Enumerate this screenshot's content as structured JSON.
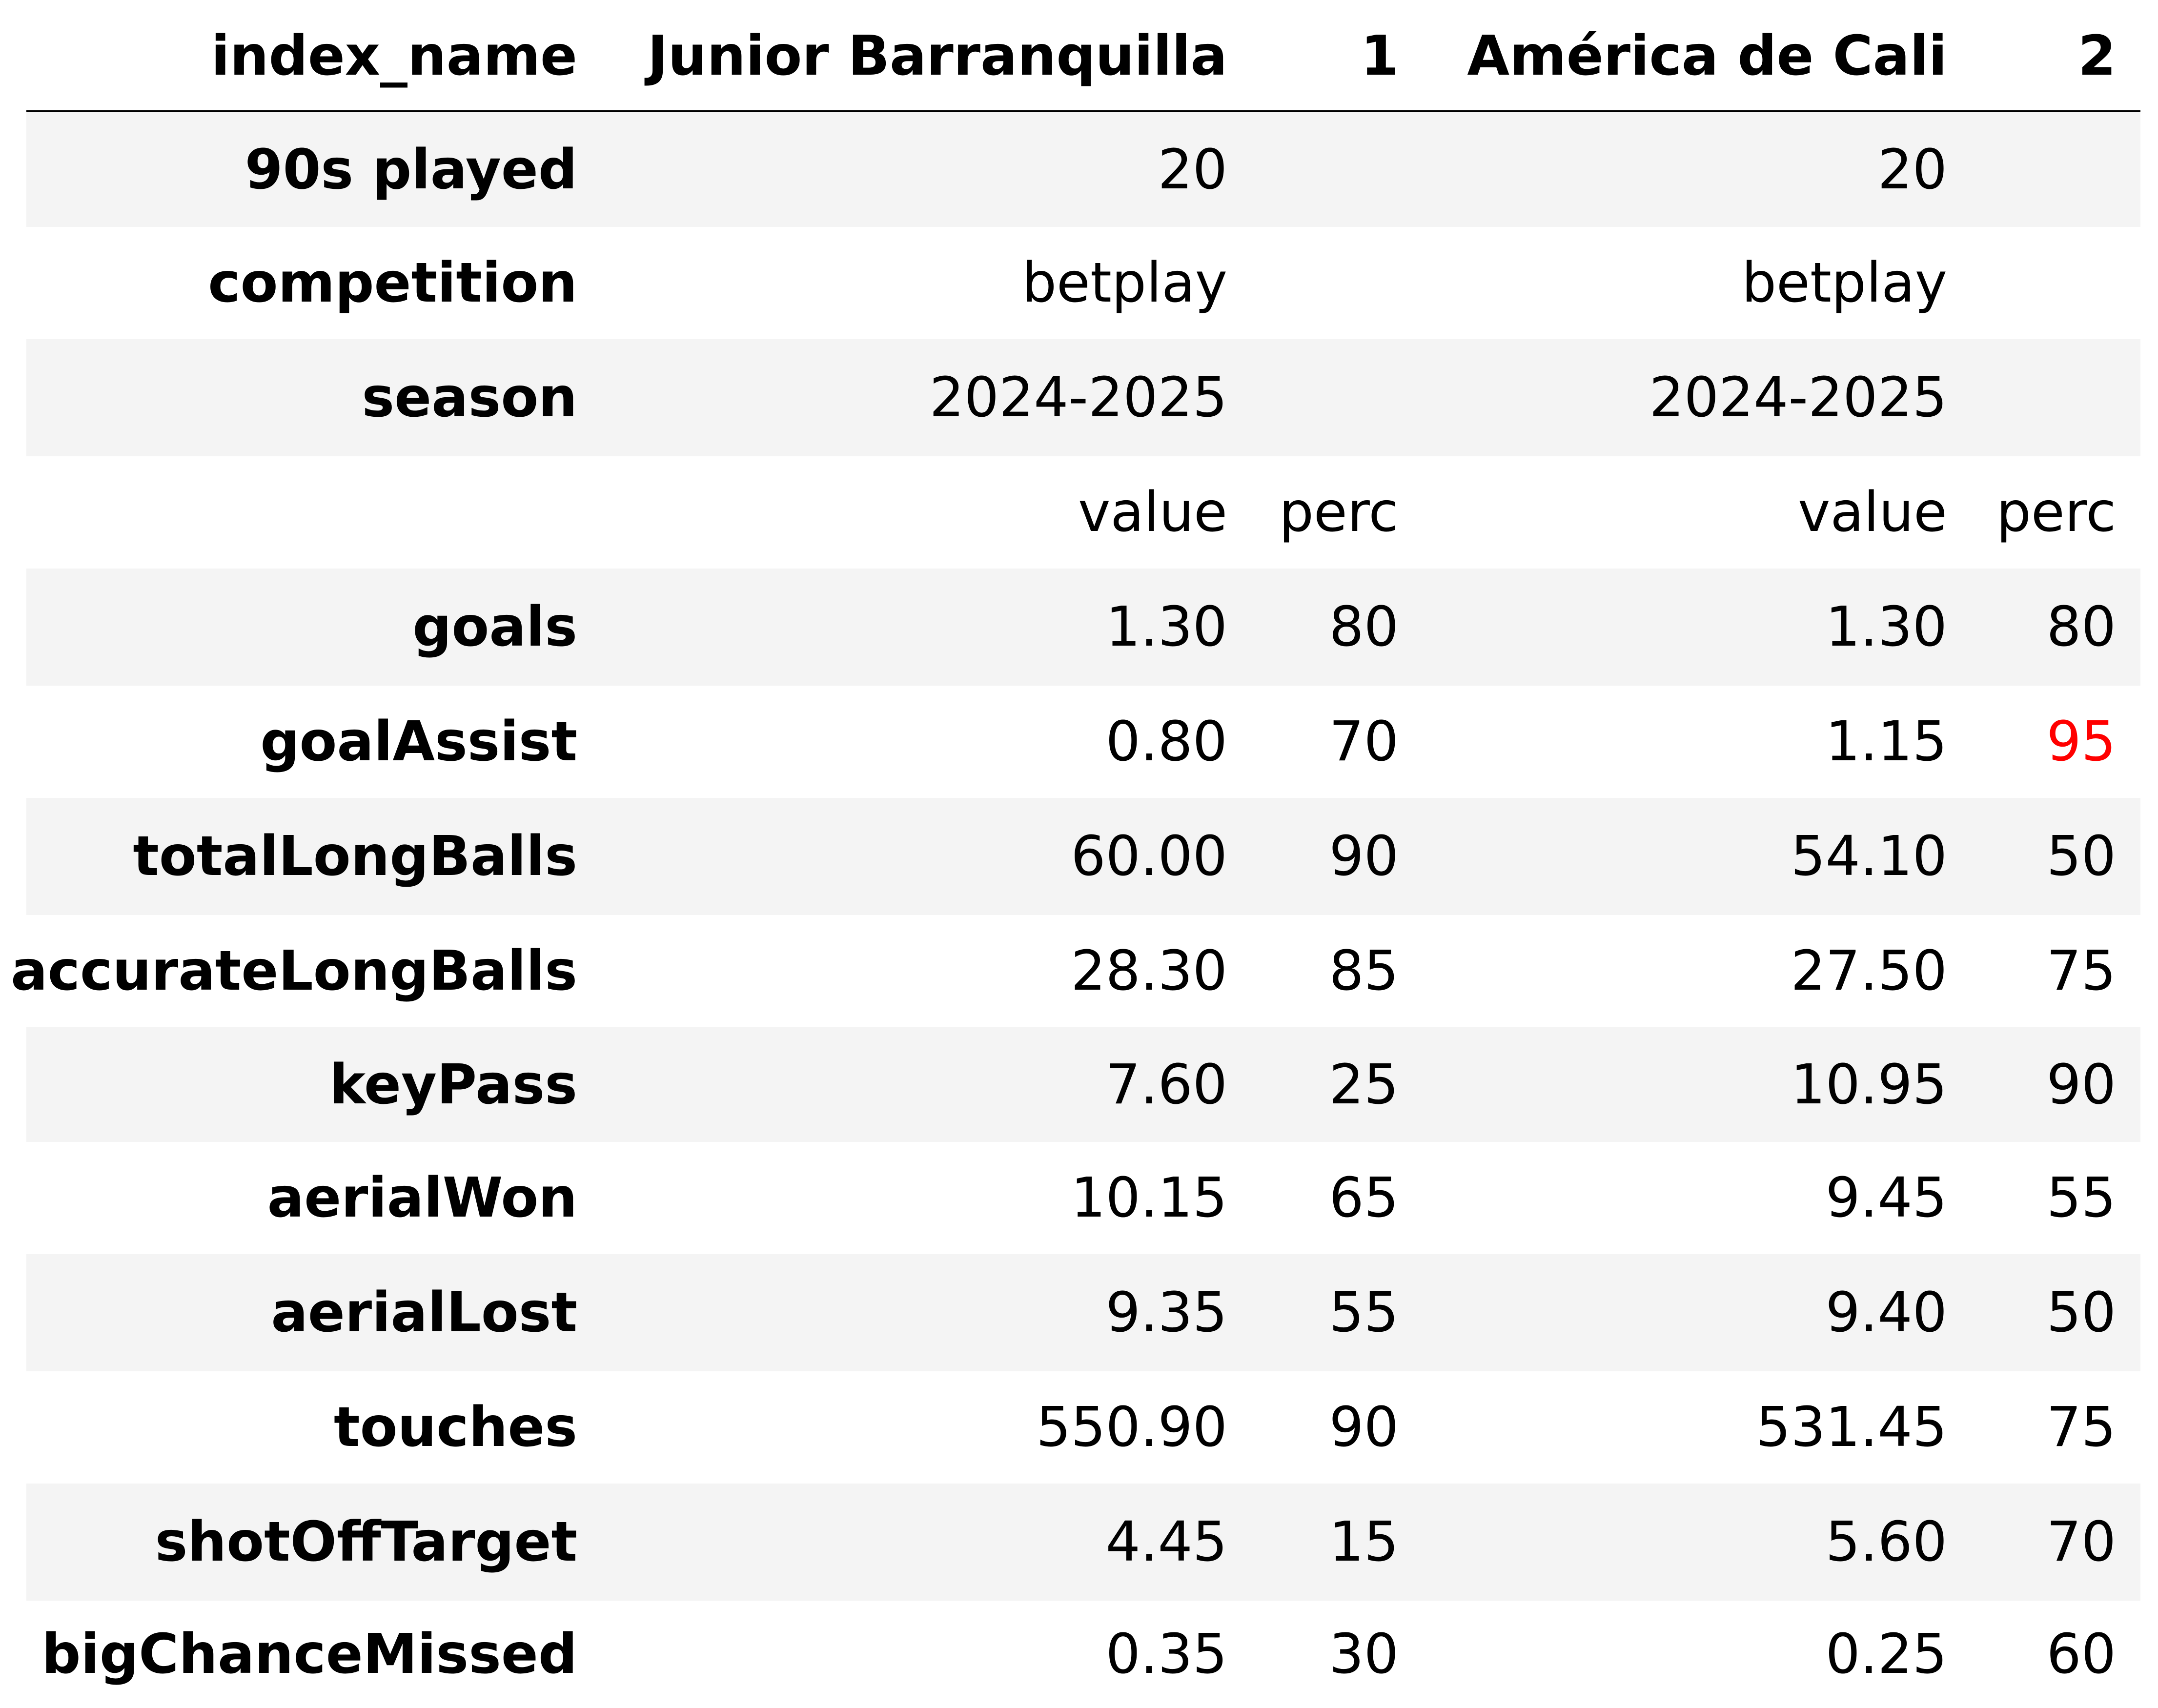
{
  "table": {
    "index_header": "index_name",
    "columns": [
      "Junior Barranquilla",
      "1",
      "América de Cali",
      "2"
    ],
    "meta_rows": [
      {
        "label": "90s played",
        "team1": "20",
        "team2": "20"
      },
      {
        "label": "competition",
        "team1": "betplay",
        "team2": "betplay"
      },
      {
        "label": "season",
        "team1": "2024-2025",
        "team2": "2024-2025"
      }
    ],
    "subheader": {
      "value1": "value",
      "perc1": "perc",
      "value2": "value",
      "perc2": "perc"
    },
    "stat_rows": [
      {
        "label": "goals",
        "value1": "1.30",
        "perc1": "80",
        "value2": "1.30",
        "perc2": "80"
      },
      {
        "label": "goalAssist",
        "value1": "0.80",
        "perc1": "70",
        "value2": "1.15",
        "perc2": "95"
      },
      {
        "label": "totalLongBalls",
        "value1": "60.00",
        "perc1": "90",
        "value2": "54.10",
        "perc2": "50"
      },
      {
        "label": "accurateLongBalls",
        "value1": "28.30",
        "perc1": "85",
        "value2": "27.50",
        "perc2": "75"
      },
      {
        "label": "keyPass",
        "value1": "7.60",
        "perc1": "25",
        "value2": "10.95",
        "perc2": "90"
      },
      {
        "label": "aerialWon",
        "value1": "10.15",
        "perc1": "65",
        "value2": "9.45",
        "perc2": "55"
      },
      {
        "label": "aerialLost",
        "value1": "9.35",
        "perc1": "55",
        "value2": "9.40",
        "perc2": "50"
      },
      {
        "label": "touches",
        "value1": "550.90",
        "perc1": "90",
        "value2": "531.45",
        "perc2": "75"
      },
      {
        "label": "shotOffTarget",
        "value1": "4.45",
        "perc1": "15",
        "value2": "5.60",
        "perc2": "70"
      },
      {
        "label": "bigChanceMissed",
        "value1": "0.35",
        "perc1": "30",
        "value2": "0.25",
        "perc2": "60"
      }
    ],
    "highlighted_cell": {
      "row": "goalAssist",
      "column": "perc2",
      "color": "#ff0000"
    },
    "colors": {
      "band": "#f4f4f4",
      "text": "#000000",
      "highlight": "#ff0000"
    }
  }
}
